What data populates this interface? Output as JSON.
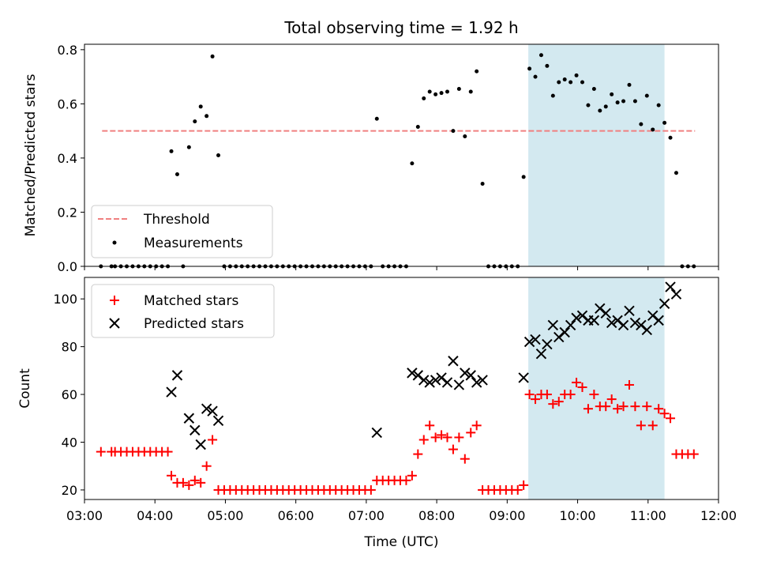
{
  "chart_data": [
    {
      "type": "scatter",
      "title": "Total observing time = 1.92 h",
      "xlabel": "",
      "ylabel": "Matched/Predicted stars",
      "xlim": [
        "03:00",
        "12:00"
      ],
      "ylim": [
        0,
        0.82
      ],
      "y_ticks": [
        "0.0",
        "0.2",
        "0.4",
        "0.6",
        "0.8"
      ],
      "highlight_span": [
        "09:18",
        "11:14"
      ],
      "highlight_color": "#d3e9f0",
      "threshold": {
        "label": "Threshold",
        "value": 0.5,
        "x_range": [
          "03:15",
          "11:40"
        ],
        "color": "#f08080",
        "style": "dashed"
      },
      "series": [
        {
          "name": "Measurements",
          "color": "#000000",
          "points": [
            [
              "03:14",
              0
            ],
            [
              "03:23",
              0
            ],
            [
              "03:26",
              0
            ],
            [
              "03:31",
              0
            ],
            [
              "03:36",
              0
            ],
            [
              "03:41",
              0
            ],
            [
              "03:46",
              0
            ],
            [
              "03:51",
              0
            ],
            [
              "03:56",
              0
            ],
            [
              "04:01",
              0
            ],
            [
              "04:06",
              0
            ],
            [
              "04:11",
              0
            ],
            [
              "04:14",
              0.425
            ],
            [
              "04:19",
              0.34
            ],
            [
              "04:24",
              0
            ],
            [
              "04:29",
              0.44
            ],
            [
              "04:34",
              0.535
            ],
            [
              "04:39",
              0.59
            ],
            [
              "04:44",
              0.555
            ],
            [
              "04:49",
              0.775
            ],
            [
              "04:54",
              0.41
            ],
            [
              "04:59",
              0
            ],
            [
              "05:04",
              0
            ],
            [
              "05:09",
              0
            ],
            [
              "05:14",
              0
            ],
            [
              "05:19",
              0
            ],
            [
              "05:24",
              0
            ],
            [
              "05:29",
              0
            ],
            [
              "05:34",
              0
            ],
            [
              "05:39",
              0
            ],
            [
              "05:44",
              0
            ],
            [
              "05:49",
              0
            ],
            [
              "05:54",
              0
            ],
            [
              "05:59",
              0
            ],
            [
              "06:04",
              0
            ],
            [
              "06:09",
              0
            ],
            [
              "06:14",
              0
            ],
            [
              "06:19",
              0
            ],
            [
              "06:24",
              0
            ],
            [
              "06:29",
              0
            ],
            [
              "06:34",
              0
            ],
            [
              "06:39",
              0
            ],
            [
              "06:44",
              0
            ],
            [
              "06:49",
              0
            ],
            [
              "06:54",
              0
            ],
            [
              "06:59",
              0
            ],
            [
              "07:04",
              0
            ],
            [
              "07:09",
              0.545
            ],
            [
              "07:14",
              0
            ],
            [
              "07:19",
              0
            ],
            [
              "07:24",
              0
            ],
            [
              "07:29",
              0
            ],
            [
              "07:34",
              0
            ],
            [
              "07:39",
              0.38
            ],
            [
              "07:44",
              0.515
            ],
            [
              "07:49",
              0.62
            ],
            [
              "07:54",
              0.645
            ],
            [
              "07:59",
              0.635
            ],
            [
              "08:04",
              0.64
            ],
            [
              "08:09",
              0.645
            ],
            [
              "08:14",
              0.5
            ],
            [
              "08:19",
              0.655
            ],
            [
              "08:24",
              0.48
            ],
            [
              "08:29",
              0.645
            ],
            [
              "08:34",
              0.72
            ],
            [
              "08:39",
              0.305
            ],
            [
              "08:44",
              0
            ],
            [
              "08:49",
              0
            ],
            [
              "08:54",
              0
            ],
            [
              "08:59",
              0
            ],
            [
              "09:04",
              0
            ],
            [
              "09:09",
              0
            ],
            [
              "09:14",
              0.33
            ],
            [
              "09:19",
              0.73
            ],
            [
              "09:24",
              0.7
            ],
            [
              "09:29",
              0.78
            ],
            [
              "09:34",
              0.74
            ],
            [
              "09:39",
              0.63
            ],
            [
              "09:44",
              0.68
            ],
            [
              "09:49",
              0.69
            ],
            [
              "09:54",
              0.68
            ],
            [
              "09:59",
              0.705
            ],
            [
              "10:04",
              0.68
            ],
            [
              "10:09",
              0.595
            ],
            [
              "10:14",
              0.655
            ],
            [
              "10:19",
              0.575
            ],
            [
              "10:24",
              0.59
            ],
            [
              "10:29",
              0.635
            ],
            [
              "10:34",
              0.605
            ],
            [
              "10:39",
              0.61
            ],
            [
              "10:44",
              0.67
            ],
            [
              "10:49",
              0.61
            ],
            [
              "10:54",
              0.525
            ],
            [
              "10:59",
              0.63
            ],
            [
              "11:04",
              0.505
            ],
            [
              "11:09",
              0.595
            ],
            [
              "11:14",
              0.53
            ],
            [
              "11:19",
              0.475
            ],
            [
              "11:24",
              0.345
            ],
            [
              "11:29",
              0
            ],
            [
              "11:34",
              0
            ],
            [
              "11:39",
              0
            ]
          ]
        }
      ],
      "legend": {
        "position": "lower-left",
        "entries": [
          "Threshold",
          "Measurements"
        ]
      }
    },
    {
      "type": "scatter",
      "title": "",
      "xlabel": "Time (UTC)",
      "ylabel": "Count",
      "xlim": [
        "03:00",
        "12:00"
      ],
      "ylim": [
        16,
        109
      ],
      "y_ticks": [
        "20",
        "40",
        "60",
        "80",
        "100"
      ],
      "x_ticks": [
        "03:00",
        "04:00",
        "05:00",
        "06:00",
        "07:00",
        "08:00",
        "09:00",
        "10:00",
        "11:00",
        "12:00"
      ],
      "highlight_span": [
        "09:18",
        "11:14"
      ],
      "highlight_color": "#d3e9f0",
      "series": [
        {
          "name": "Matched stars",
          "marker": "plus",
          "color": "#ff0000",
          "points": [
            [
              "03:14",
              36
            ],
            [
              "03:23",
              36
            ],
            [
              "03:26",
              36
            ],
            [
              "03:31",
              36
            ],
            [
              "03:36",
              36
            ],
            [
              "03:41",
              36
            ],
            [
              "03:46",
              36
            ],
            [
              "03:51",
              36
            ],
            [
              "03:56",
              36
            ],
            [
              "04:01",
              36
            ],
            [
              "04:06",
              36
            ],
            [
              "04:11",
              36
            ],
            [
              "04:14",
              26
            ],
            [
              "04:19",
              23
            ],
            [
              "04:24",
              23
            ],
            [
              "04:29",
              22
            ],
            [
              "04:34",
              24
            ],
            [
              "04:39",
              23
            ],
            [
              "04:44",
              30
            ],
            [
              "04:49",
              41
            ],
            [
              "04:54",
              20
            ],
            [
              "04:59",
              20
            ],
            [
              "05:04",
              20
            ],
            [
              "05:09",
              20
            ],
            [
              "05:14",
              20
            ],
            [
              "05:19",
              20
            ],
            [
              "05:24",
              20
            ],
            [
              "05:29",
              20
            ],
            [
              "05:34",
              20
            ],
            [
              "05:39",
              20
            ],
            [
              "05:44",
              20
            ],
            [
              "05:49",
              20
            ],
            [
              "05:54",
              20
            ],
            [
              "05:59",
              20
            ],
            [
              "06:04",
              20
            ],
            [
              "06:09",
              20
            ],
            [
              "06:14",
              20
            ],
            [
              "06:19",
              20
            ],
            [
              "06:24",
              20
            ],
            [
              "06:29",
              20
            ],
            [
              "06:34",
              20
            ],
            [
              "06:39",
              20
            ],
            [
              "06:44",
              20
            ],
            [
              "06:49",
              20
            ],
            [
              "06:54",
              20
            ],
            [
              "06:59",
              20
            ],
            [
              "07:04",
              20
            ],
            [
              "07:09",
              24
            ],
            [
              "07:14",
              24
            ],
            [
              "07:19",
              24
            ],
            [
              "07:24",
              24
            ],
            [
              "07:29",
              24
            ],
            [
              "07:34",
              24
            ],
            [
              "07:39",
              26
            ],
            [
              "07:44",
              35
            ],
            [
              "07:49",
              41
            ],
            [
              "07:54",
              47
            ],
            [
              "07:59",
              42
            ],
            [
              "08:04",
              43
            ],
            [
              "08:09",
              42
            ],
            [
              "08:14",
              37
            ],
            [
              "08:19",
              42
            ],
            [
              "08:24",
              33
            ],
            [
              "08:29",
              44
            ],
            [
              "08:34",
              47
            ],
            [
              "08:39",
              20
            ],
            [
              "08:44",
              20
            ],
            [
              "08:49",
              20
            ],
            [
              "08:54",
              20
            ],
            [
              "08:59",
              20
            ],
            [
              "09:04",
              20
            ],
            [
              "09:09",
              20
            ],
            [
              "09:14",
              22
            ],
            [
              "09:19",
              60
            ],
            [
              "09:24",
              58
            ],
            [
              "09:29",
              60
            ],
            [
              "09:34",
              60
            ],
            [
              "09:39",
              56
            ],
            [
              "09:44",
              57
            ],
            [
              "09:49",
              60
            ],
            [
              "09:54",
              60
            ],
            [
              "09:59",
              65
            ],
            [
              "10:04",
              63
            ],
            [
              "10:09",
              54
            ],
            [
              "10:14",
              60
            ],
            [
              "10:19",
              55
            ],
            [
              "10:24",
              55
            ],
            [
              "10:29",
              58
            ],
            [
              "10:34",
              54
            ],
            [
              "10:39",
              55
            ],
            [
              "10:44",
              64
            ],
            [
              "10:49",
              55
            ],
            [
              "10:54",
              47
            ],
            [
              "10:59",
              55
            ],
            [
              "11:04",
              47
            ],
            [
              "11:09",
              54
            ],
            [
              "11:14",
              52
            ],
            [
              "11:19",
              50
            ],
            [
              "11:24",
              35
            ],
            [
              "11:29",
              35
            ],
            [
              "11:34",
              35
            ],
            [
              "11:39",
              35
            ]
          ]
        },
        {
          "name": "Predicted stars",
          "marker": "x",
          "color": "#000000",
          "points": [
            [
              "04:14",
              61
            ],
            [
              "04:19",
              68
            ],
            [
              "04:29",
              50
            ],
            [
              "04:34",
              45
            ],
            [
              "04:39",
              39
            ],
            [
              "04:44",
              54
            ],
            [
              "04:49",
              53
            ],
            [
              "04:54",
              49
            ],
            [
              "07:09",
              44
            ],
            [
              "07:39",
              69
            ],
            [
              "07:44",
              68
            ],
            [
              "07:49",
              66
            ],
            [
              "07:54",
              65
            ],
            [
              "07:59",
              66
            ],
            [
              "08:04",
              67
            ],
            [
              "08:09",
              65
            ],
            [
              "08:14",
              74
            ],
            [
              "08:19",
              64
            ],
            [
              "08:24",
              69
            ],
            [
              "08:29",
              68
            ],
            [
              "08:34",
              65
            ],
            [
              "08:39",
              66
            ],
            [
              "09:14",
              67
            ],
            [
              "09:19",
              82
            ],
            [
              "09:24",
              83
            ],
            [
              "09:29",
              77
            ],
            [
              "09:34",
              81
            ],
            [
              "09:39",
              89
            ],
            [
              "09:44",
              84
            ],
            [
              "09:49",
              86
            ],
            [
              "09:54",
              89
            ],
            [
              "09:59",
              92
            ],
            [
              "10:04",
              93
            ],
            [
              "10:09",
              91
            ],
            [
              "10:14",
              91
            ],
            [
              "10:19",
              96
            ],
            [
              "10:24",
              94
            ],
            [
              "10:29",
              90
            ],
            [
              "10:34",
              91
            ],
            [
              "10:39",
              89
            ],
            [
              "10:44",
              95
            ],
            [
              "10:49",
              90
            ],
            [
              "10:54",
              89
            ],
            [
              "10:59",
              87
            ],
            [
              "11:04",
              93
            ],
            [
              "11:09",
              91
            ],
            [
              "11:14",
              98
            ],
            [
              "11:19",
              105
            ],
            [
              "11:24",
              102
            ]
          ]
        }
      ],
      "legend": {
        "position": "upper-left",
        "entries": [
          "Matched stars",
          "Predicted stars"
        ]
      }
    }
  ]
}
